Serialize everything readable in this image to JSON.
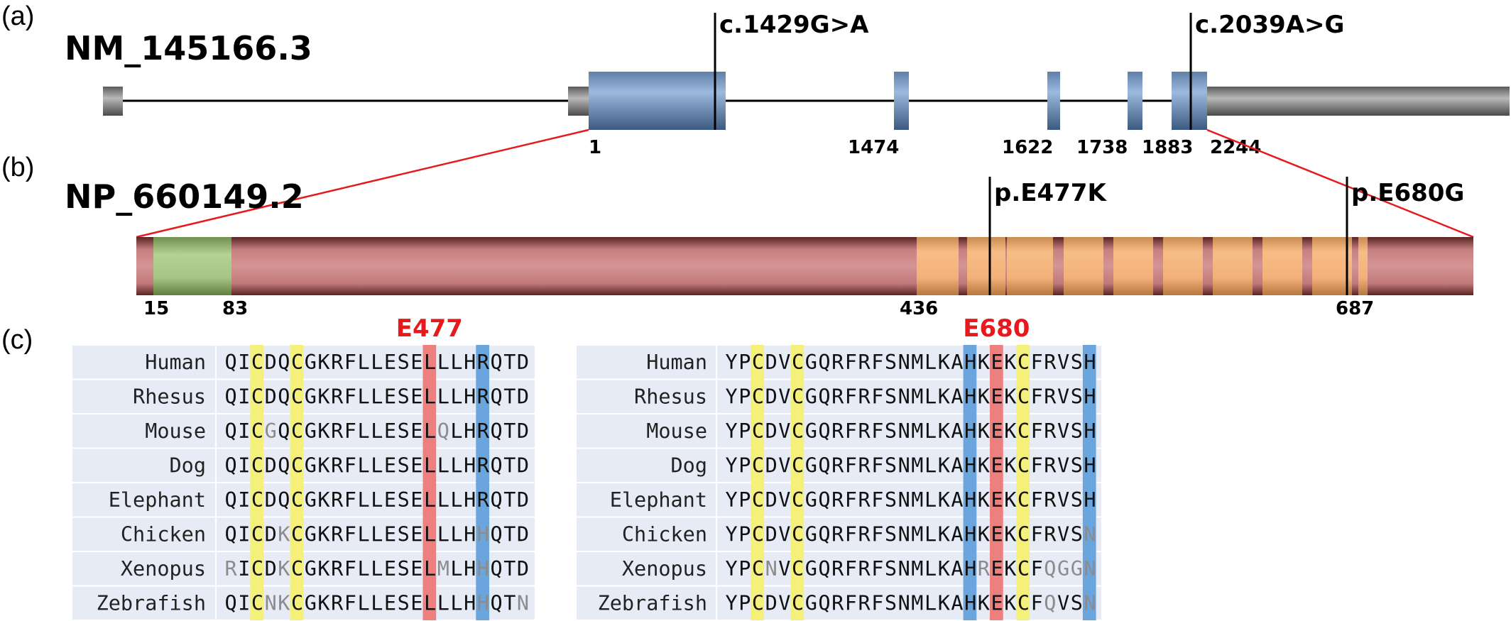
{
  "panel_labels": [
    "(a)",
    "(b)",
    "(c)"
  ],
  "transcript": {
    "accession": "NM_145166.3",
    "exon_labels": [
      "1",
      "1474",
      "1622",
      "1738",
      "1883",
      "2244"
    ],
    "variants": [
      "c.1429G>A",
      "c.2039A>G"
    ]
  },
  "protein": {
    "accession": "NP_660149.2",
    "domain_labels": [
      "15",
      "83",
      "436",
      "687"
    ],
    "variants": [
      "p.E477K",
      "p.E680G"
    ]
  },
  "alignments": [
    {
      "highlight_label": "E477",
      "rows": [
        {
          "species": "Human",
          "sequence": "QICDQCGKRFLLESELLLHRQTD"
        },
        {
          "species": "Rhesus",
          "sequence": "QICDQCGKRFLLESELLLHRQTD"
        },
        {
          "species": "Mouse",
          "sequence": "QICGQCGKRFLLESELQLHRQTD"
        },
        {
          "species": "Dog",
          "sequence": "QICDQCGKRFLLESELLLHRQTD"
        },
        {
          "species": "Elephant",
          "sequence": "QICDQCGKRFLLESELLLHRQTD"
        },
        {
          "species": "Chicken",
          "sequence": "QICDKCGKRFLLESELLLHHQTD"
        },
        {
          "species": "Xenopus",
          "sequence": "RICDKCGKRFLLESELMLHHQTD"
        },
        {
          "species": "Zebrafish",
          "sequence": "QICNKCGKRFLLESELLLHHQTN"
        }
      ],
      "variable_residues": [
        [],
        [],
        [
          3,
          16
        ],
        [],
        [],
        [
          4,
          19
        ],
        [
          0,
          4,
          16,
          19
        ],
        [
          3,
          4,
          19,
          22
        ]
      ],
      "column_highlights": [
        {
          "column": 2,
          "color": "#f4f07a"
        },
        {
          "column": 5,
          "color": "#f4f07a"
        },
        {
          "column": 15,
          "color": "#ee7f7f"
        },
        {
          "column": 19,
          "color": "#6aa6dd"
        }
      ]
    },
    {
      "highlight_label": "E680",
      "rows": [
        {
          "species": "Human",
          "sequence": "YPCDVCGQRFRFSNMLKAHKEKCFRVSH"
        },
        {
          "species": "Rhesus",
          "sequence": "YPCDVCGQRFRFSNMLKAHKEKCFRVSH"
        },
        {
          "species": "Mouse",
          "sequence": "YPCDVCGQRFRFSNMLKAHKEKCFRVSH"
        },
        {
          "species": "Dog",
          "sequence": "YPCDVCGQRFRFSNMLKAHKEKCFRVSH"
        },
        {
          "species": "Elephant",
          "sequence": "YPCDVCGQRFRFSNMLKAHKEKCFRVSH"
        },
        {
          "species": "Chicken",
          "sequence": "YPCDVCGQRFRFSNMLKAHKEKCFRVSN"
        },
        {
          "species": "Xenopus",
          "sequence": "YPCNVCGQRFRFSNMLKAHREKCFQGGN"
        },
        {
          "species": "Zebrafish",
          "sequence": "YPCDVCGQRFRFSNMLKAHKEKCFQVSN"
        }
      ],
      "variable_residues": [
        [],
        [],
        [],
        [],
        [],
        [
          27
        ],
        [
          3,
          19,
          24,
          25,
          26,
          27
        ],
        [
          24,
          27
        ]
      ],
      "column_highlights": [
        {
          "column": 2,
          "color": "#f4f07a"
        },
        {
          "column": 5,
          "color": "#f4f07a"
        },
        {
          "column": 18,
          "color": "#6aa6dd"
        },
        {
          "column": 20,
          "color": "#ee7f7f"
        },
        {
          "column": 22,
          "color": "#f4f07a"
        },
        {
          "column": 27,
          "color": "#6aa6dd"
        }
      ]
    }
  ],
  "colors": {
    "exon_blue": "#7f9fc8",
    "utr_gray": "#8a8a8a",
    "protein_body": "#c98585",
    "n_domain_green": "#a9c98a",
    "zinc_finger_orange": "#f2b27a",
    "connector_red": "#e8191c",
    "alignment_background": "#e6ebf6",
    "conserved_text": "#111111",
    "variable_text": "#8c8c8c"
  }
}
